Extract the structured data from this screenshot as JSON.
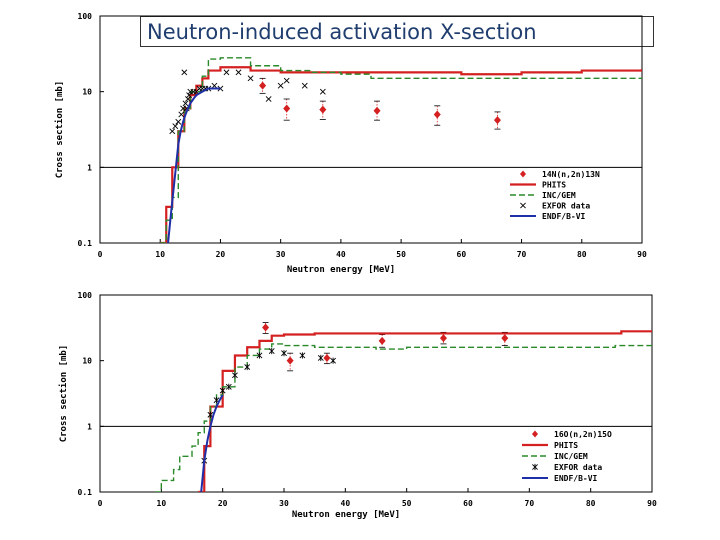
{
  "slide": {
    "title": "Neutron-induced activation X-section"
  },
  "colors": {
    "phits": "#d42020",
    "inc": "#2a8a2a",
    "endf": "#1f2fa8",
    "exp": "#d42020",
    "exfor": "#000000"
  },
  "chart_data": [
    {
      "type": "line",
      "title": "",
      "xlabel": "Neutron energy [MeV]",
      "ylabel": "Cross section [mb]",
      "xlim": [
        0,
        90
      ],
      "ylim": [
        0.1,
        100
      ],
      "yscale": "log",
      "x_ticks": [
        "0",
        "10",
        "20",
        "30",
        "40",
        "50",
        "60",
        "70",
        "80",
        "90"
      ],
      "y_ticks": [
        "0.1",
        "1",
        "10",
        "100"
      ],
      "legend_position": "bottom-right",
      "series": [
        {
          "name": "14N(n,2n)13N",
          "kind": "points",
          "x": [
            27,
            31,
            37,
            46,
            56,
            66
          ],
          "y": [
            12,
            6,
            5.8,
            5.6,
            5,
            4.2
          ],
          "yerr_low": [
            9.5,
            4.2,
            4.3,
            4.2,
            3.6,
            3.2
          ],
          "yerr_high": [
            15,
            8,
            7.5,
            7.5,
            6.5,
            5.4
          ]
        },
        {
          "name": "PHITS",
          "kind": "step",
          "x": [
            10,
            11,
            12,
            13,
            14,
            15,
            16,
            17,
            18,
            20,
            25,
            30,
            40,
            50,
            60,
            70,
            80,
            90
          ],
          "y": [
            0.1,
            0.3,
            1,
            3,
            6,
            9,
            12,
            15,
            19,
            21,
            19,
            18,
            18,
            18,
            17,
            18,
            19,
            20
          ]
        },
        {
          "name": "INC/GEM",
          "kind": "step",
          "x": [
            10,
            11,
            12,
            13,
            14,
            15,
            17,
            18,
            20,
            25,
            30,
            35,
            40,
            45,
            55,
            90
          ],
          "y": [
            0.1,
            0.2,
            0.4,
            3,
            6,
            10,
            16,
            27,
            28,
            22,
            19,
            18,
            17,
            15,
            15,
            15
          ]
        },
        {
          "name": "EXFOR data",
          "kind": "markers",
          "x": [
            12,
            12.5,
            13,
            13.5,
            13.8,
            14,
            14.2,
            14.4,
            14.6,
            14.8,
            15,
            15.5,
            16,
            16.5,
            17,
            17.5,
            18,
            19,
            20,
            21,
            23,
            25,
            28,
            30,
            31,
            34,
            37
          ],
          "y": [
            3,
            3.5,
            4,
            5,
            6,
            18,
            7,
            6,
            8,
            9,
            10,
            10,
            10,
            11,
            11,
            11,
            11,
            12,
            11,
            18,
            18,
            15,
            8,
            12,
            14,
            12,
            10
          ]
        },
        {
          "name": "ENDF/B-VI",
          "kind": "curve",
          "x": [
            11.3,
            11.8,
            12.2,
            12.6,
            13,
            13.4,
            13.8,
            14.2,
            14.6,
            15,
            15.5,
            16,
            17,
            18,
            19,
            20
          ],
          "y": [
            0.1,
            0.25,
            0.5,
            1,
            2,
            3,
            4,
            5,
            6,
            7,
            8,
            9,
            10,
            11,
            11,
            11
          ]
        }
      ]
    },
    {
      "type": "line",
      "title": "",
      "xlabel": "Neutron energy [MeV]",
      "ylabel": "Cross section [mb]",
      "xlim": [
        0,
        90
      ],
      "ylim": [
        0.1,
        100
      ],
      "yscale": "log",
      "x_ticks": [
        "0",
        "10",
        "20",
        "30",
        "40",
        "50",
        "60",
        "70",
        "80",
        "90"
      ],
      "y_ticks": [
        "0.1",
        "1",
        "10",
        "100"
      ],
      "legend_position": "bottom-right",
      "series": [
        {
          "name": "16O(n,2n)15O",
          "kind": "points",
          "x": [
            27,
            31,
            37,
            46,
            56,
            66
          ],
          "y": [
            32,
            10,
            11,
            20,
            22,
            22
          ],
          "yerr_low": [
            26,
            7,
            9,
            16,
            18,
            17
          ],
          "yerr_high": [
            38,
            13,
            13,
            25,
            27,
            27
          ]
        },
        {
          "name": "PHITS",
          "kind": "step",
          "x": [
            16,
            17,
            18,
            20,
            22,
            24,
            26,
            28,
            30,
            35,
            40,
            50,
            60,
            70,
            80,
            85,
            90
          ],
          "y": [
            0.1,
            0.5,
            2,
            7,
            12,
            16,
            20,
            24,
            25,
            26,
            26,
            26,
            26,
            26,
            26,
            28,
            28
          ]
        },
        {
          "name": "INC/GEM",
          "kind": "step",
          "x": [
            9,
            10,
            12,
            13,
            15,
            16,
            17,
            18,
            19,
            20,
            22,
            24,
            26,
            28,
            30,
            35,
            40,
            45,
            50,
            55,
            60,
            70,
            80,
            84,
            90
          ],
          "y": [
            0.1,
            0.15,
            0.22,
            0.35,
            0.5,
            0.8,
            1.2,
            2,
            3,
            4,
            8,
            12,
            15,
            18,
            17,
            16,
            16,
            15,
            16,
            16,
            16,
            16,
            16,
            17,
            17
          ]
        },
        {
          "name": "EXFOR data",
          "kind": "markers",
          "x": [
            17,
            18,
            19,
            20,
            21,
            22,
            24,
            26,
            28,
            30,
            33,
            36,
            38
          ],
          "y": [
            0.3,
            1.5,
            2.5,
            3.5,
            4,
            6,
            8,
            12,
            14,
            13,
            12,
            11,
            10
          ]
        },
        {
          "name": "ENDF/B-VI",
          "kind": "curve",
          "x": [
            16.5,
            17,
            17.5,
            18,
            18.5,
            19,
            19.5,
            20
          ],
          "y": [
            0.1,
            0.3,
            0.6,
            1,
            1.5,
            2,
            2.5,
            3
          ]
        }
      ]
    }
  ]
}
